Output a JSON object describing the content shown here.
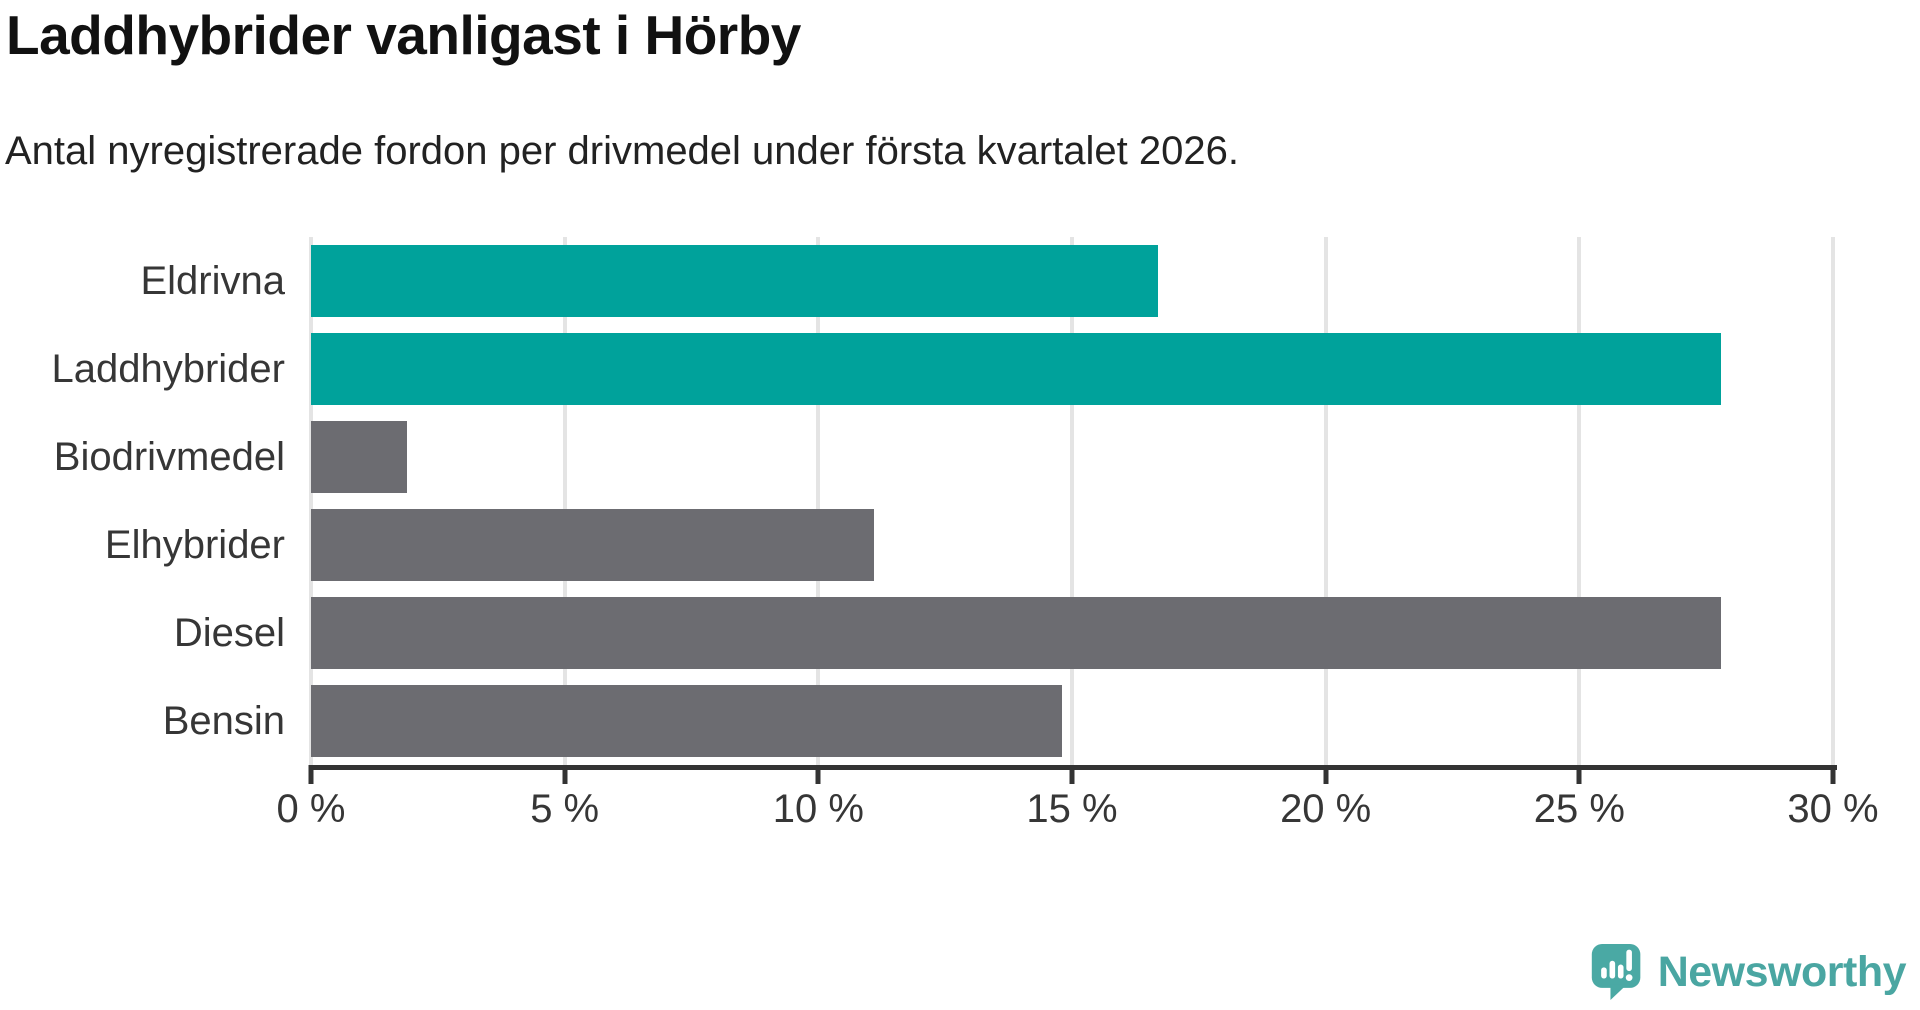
{
  "chart_data": {
    "type": "bar",
    "orientation": "horizontal",
    "title": "Laddhybrider vanligast i Hörby",
    "subtitle": "Antal nyregistrerade fordon per drivmedel under första kvartalet 2026.",
    "categories": [
      "Eldrivna",
      "Laddhybrider",
      "Biodrivmedel",
      "Elhybrider",
      "Diesel",
      "Bensin"
    ],
    "values": [
      16.7,
      27.8,
      1.9,
      11.1,
      27.8,
      14.8
    ],
    "unit": "%",
    "xlim": [
      0,
      30
    ],
    "x_ticks": [
      0,
      5,
      10,
      15,
      20,
      25,
      30
    ],
    "x_tick_labels": [
      "0 %",
      "5 %",
      "10 %",
      "15 %",
      "20 %",
      "25 %",
      "30 %"
    ],
    "bar_colors": [
      "#00a29b",
      "#00a29b",
      "#6c6c71",
      "#6c6c71",
      "#6c6c71",
      "#6c6c71"
    ],
    "highlight_color": "#00a29b",
    "default_color": "#6c6c71",
    "gridline_color": "#e4e4e4",
    "axis_color": "#333333",
    "grid": true,
    "legend": false
  },
  "footer": {
    "brand": "Newsworthy",
    "brand_color": "#4aa6a2",
    "icon_color": "#4aa9a4",
    "icon": "newsworthy-speech-bubble-chart-icon"
  }
}
